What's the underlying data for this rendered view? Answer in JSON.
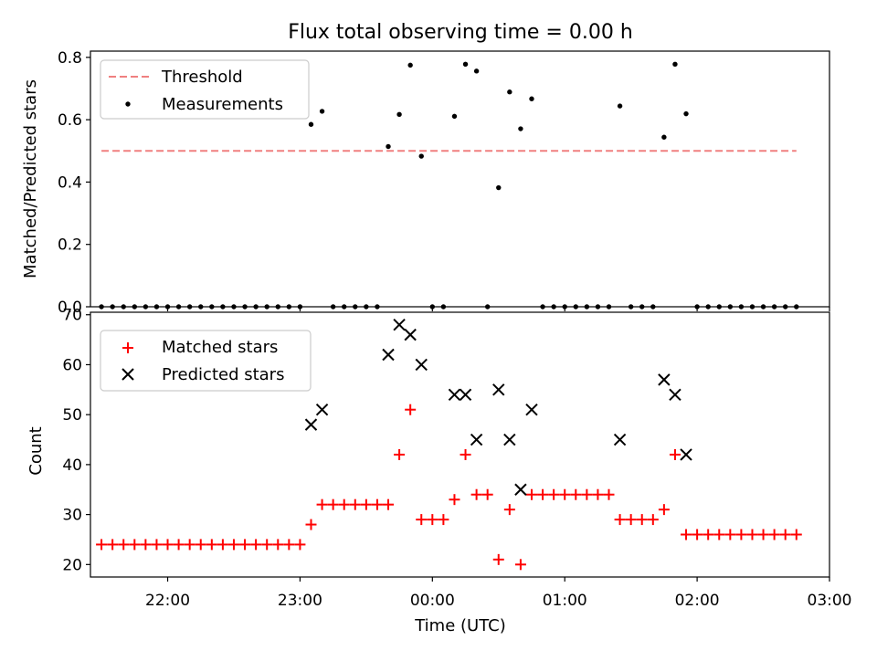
{
  "chart_data": [
    {
      "type": "scatter",
      "title": "Flux total observing time = 0.00 h",
      "xlabel": "",
      "ylabel": "Matched/Predicted stars",
      "xlim": [
        "21:25",
        "03:00"
      ],
      "ylim": [
        0,
        0.82
      ],
      "yticks": [
        "0.0",
        "0.2",
        "0.4",
        "0.6",
        "0.8"
      ],
      "legend_position": "top-left",
      "threshold": {
        "name": "Threshold",
        "value": 0.5,
        "x_range": [
          "21:30",
          "02:45"
        ],
        "color": "#f08080",
        "style": "dashed"
      },
      "series": [
        {
          "name": "Measurements",
          "color": "#000000",
          "marker": "dot",
          "points": [
            [
              "21:30",
              0
            ],
            [
              "21:35",
              0
            ],
            [
              "21:40",
              0
            ],
            [
              "21:45",
              0
            ],
            [
              "21:50",
              0
            ],
            [
              "21:55",
              0
            ],
            [
              "22:00",
              0
            ],
            [
              "22:05",
              0
            ],
            [
              "22:10",
              0
            ],
            [
              "22:15",
              0
            ],
            [
              "22:20",
              0
            ],
            [
              "22:25",
              0
            ],
            [
              "22:30",
              0
            ],
            [
              "22:35",
              0
            ],
            [
              "22:40",
              0
            ],
            [
              "22:45",
              0
            ],
            [
              "22:50",
              0
            ],
            [
              "22:55",
              0
            ],
            [
              "23:00",
              0
            ],
            [
              "23:05",
              0.585
            ],
            [
              "23:10",
              0.627
            ],
            [
              "23:15",
              0
            ],
            [
              "23:20",
              0
            ],
            [
              "23:25",
              0
            ],
            [
              "23:30",
              0
            ],
            [
              "23:35",
              0
            ],
            [
              "23:40",
              0.514
            ],
            [
              "23:45",
              0.617
            ],
            [
              "23:50",
              0.775
            ],
            [
              "23:55",
              0.483
            ],
            [
              "00:00",
              0
            ],
            [
              "00:05",
              0
            ],
            [
              "00:10",
              0.611
            ],
            [
              "00:15",
              0.778
            ],
            [
              "00:20",
              0.756
            ],
            [
              "00:25",
              0
            ],
            [
              "00:30",
              0.382
            ],
            [
              "00:35",
              0.689
            ],
            [
              "00:40",
              0.571
            ],
            [
              "00:45",
              0.667
            ],
            [
              "00:50",
              0
            ],
            [
              "00:55",
              0
            ],
            [
              "01:00",
              0
            ],
            [
              "01:05",
              0
            ],
            [
              "01:10",
              0
            ],
            [
              "01:15",
              0
            ],
            [
              "01:20",
              0
            ],
            [
              "01:25",
              0.644
            ],
            [
              "01:30",
              0
            ],
            [
              "01:35",
              0
            ],
            [
              "01:40",
              0
            ],
            [
              "01:45",
              0.544
            ],
            [
              "01:50",
              0.778
            ],
            [
              "01:55",
              0.619
            ],
            [
              "02:00",
              0
            ],
            [
              "02:05",
              0
            ],
            [
              "02:10",
              0
            ],
            [
              "02:15",
              0
            ],
            [
              "02:20",
              0
            ],
            [
              "02:25",
              0
            ],
            [
              "02:30",
              0
            ],
            [
              "02:35",
              0
            ],
            [
              "02:40",
              0
            ],
            [
              "02:45",
              0
            ]
          ]
        }
      ]
    },
    {
      "type": "scatter",
      "title": "",
      "xlabel": "Time (UTC)",
      "ylabel": "Count",
      "xlim": [
        "21:25",
        "03:00"
      ],
      "ylim": [
        17.5,
        70.5
      ],
      "xticks": [
        "22:00",
        "23:00",
        "00:00",
        "01:00",
        "02:00",
        "03:00"
      ],
      "yticks": [
        "20",
        "30",
        "40",
        "50",
        "60",
        "70"
      ],
      "legend_position": "top-left",
      "series": [
        {
          "name": "Matched stars",
          "color": "#ff0000",
          "marker": "plus",
          "points": [
            [
              "21:30",
              24
            ],
            [
              "21:35",
              24
            ],
            [
              "21:40",
              24
            ],
            [
              "21:45",
              24
            ],
            [
              "21:50",
              24
            ],
            [
              "21:55",
              24
            ],
            [
              "22:00",
              24
            ],
            [
              "22:05",
              24
            ],
            [
              "22:10",
              24
            ],
            [
              "22:15",
              24
            ],
            [
              "22:20",
              24
            ],
            [
              "22:25",
              24
            ],
            [
              "22:30",
              24
            ],
            [
              "22:35",
              24
            ],
            [
              "22:40",
              24
            ],
            [
              "22:45",
              24
            ],
            [
              "22:50",
              24
            ],
            [
              "22:55",
              24
            ],
            [
              "23:00",
              24
            ],
            [
              "23:05",
              28
            ],
            [
              "23:10",
              32
            ],
            [
              "23:15",
              32
            ],
            [
              "23:20",
              32
            ],
            [
              "23:25",
              32
            ],
            [
              "23:30",
              32
            ],
            [
              "23:35",
              32
            ],
            [
              "23:40",
              32
            ],
            [
              "23:45",
              42
            ],
            [
              "23:50",
              51
            ],
            [
              "23:55",
              29
            ],
            [
              "00:00",
              29
            ],
            [
              "00:05",
              29
            ],
            [
              "00:10",
              33
            ],
            [
              "00:15",
              42
            ],
            [
              "00:20",
              34
            ],
            [
              "00:25",
              34
            ],
            [
              "00:30",
              21
            ],
            [
              "00:35",
              31
            ],
            [
              "00:40",
              20
            ],
            [
              "00:45",
              34
            ],
            [
              "00:50",
              34
            ],
            [
              "00:55",
              34
            ],
            [
              "01:00",
              34
            ],
            [
              "01:05",
              34
            ],
            [
              "01:10",
              34
            ],
            [
              "01:15",
              34
            ],
            [
              "01:20",
              34
            ],
            [
              "01:25",
              29
            ],
            [
              "01:30",
              29
            ],
            [
              "01:35",
              29
            ],
            [
              "01:40",
              29
            ],
            [
              "01:45",
              31
            ],
            [
              "01:50",
              42
            ],
            [
              "01:55",
              26
            ],
            [
              "02:00",
              26
            ],
            [
              "02:05",
              26
            ],
            [
              "02:10",
              26
            ],
            [
              "02:15",
              26
            ],
            [
              "02:20",
              26
            ],
            [
              "02:25",
              26
            ],
            [
              "02:30",
              26
            ],
            [
              "02:35",
              26
            ],
            [
              "02:40",
              26
            ],
            [
              "02:45",
              26
            ]
          ]
        },
        {
          "name": "Predicted stars",
          "color": "#000000",
          "marker": "x",
          "points": [
            [
              "23:05",
              48
            ],
            [
              "23:10",
              51
            ],
            [
              "23:40",
              62
            ],
            [
              "23:45",
              68
            ],
            [
              "23:50",
              66
            ],
            [
              "23:55",
              60
            ],
            [
              "00:10",
              54
            ],
            [
              "00:15",
              54
            ],
            [
              "00:20",
              45
            ],
            [
              "00:30",
              55
            ],
            [
              "00:35",
              45
            ],
            [
              "00:40",
              35
            ],
            [
              "00:45",
              51
            ],
            [
              "01:25",
              45
            ],
            [
              "01:45",
              57
            ],
            [
              "01:50",
              54
            ],
            [
              "01:55",
              42
            ]
          ]
        }
      ]
    }
  ]
}
